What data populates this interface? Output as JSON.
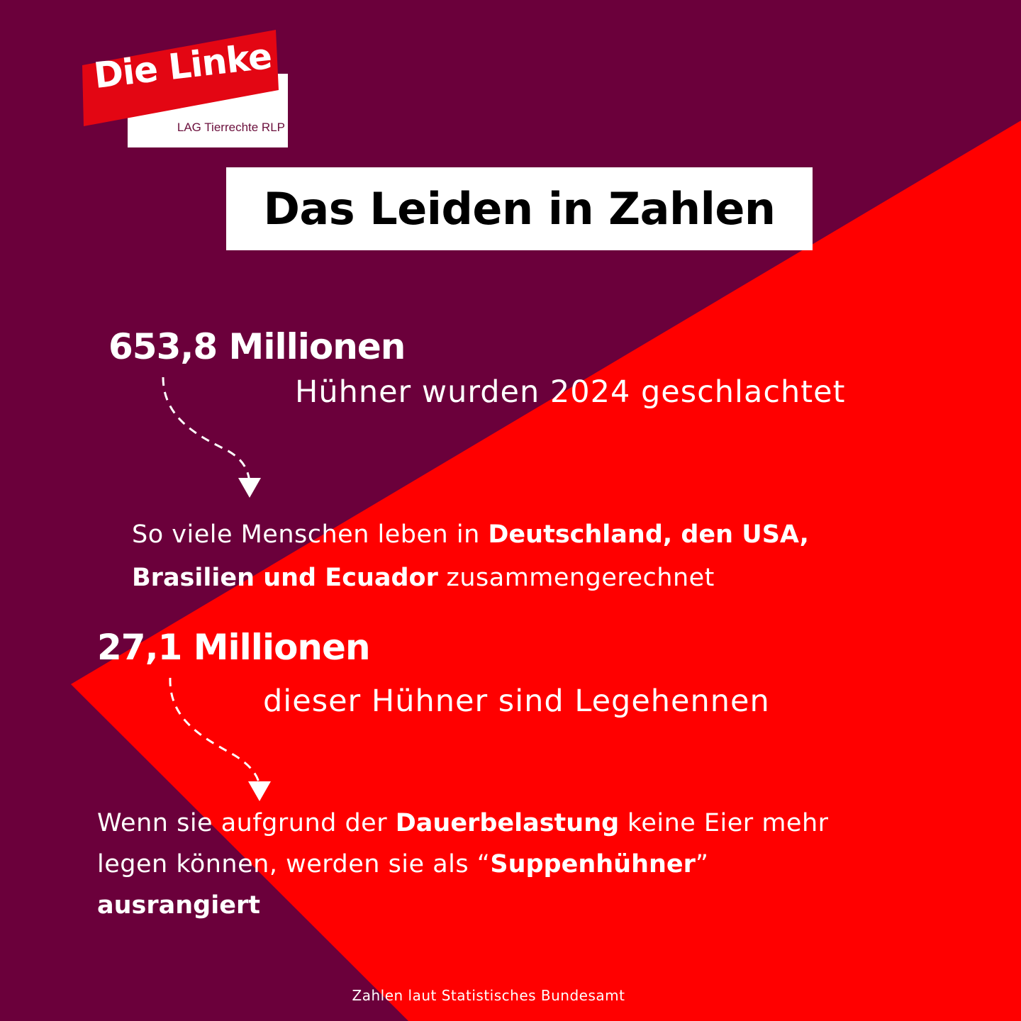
{
  "colors": {
    "plum": "#6b003b",
    "red": "#ff0000",
    "logo_red": "#e30613",
    "white": "#ffffff",
    "black": "#000000"
  },
  "logo": {
    "brand": "Die Linke",
    "subtitle": "LAG Tierrechte RLP"
  },
  "title": "Das Leiden in Zahlen",
  "block1": {
    "number": "653,8 Millionen",
    "caption": "Hühner wurden 2024 geschlachtet",
    "text_prefix": "So viele Menschen leben in ",
    "text_bold_1": "Deutschland, den USA, Brasilien und Ecuador",
    "text_suffix": " zusammengerechnet"
  },
  "block2": {
    "number": "27,1 Millionen",
    "caption": "dieser Hühner sind Legehennen",
    "text_prefix": "Wenn sie aufgrund der ",
    "text_bold_1": "Dauerbelastung",
    "text_mid": " keine Eier mehr legen können, werden sie als “",
    "text_bold_2": "Suppenhühner",
    "text_mid_2": "” ",
    "text_bold_3": "ausrangiert"
  },
  "footer": "Zahlen laut Statistisches Bundesamt",
  "icons": [
    "dashed-arrow-icon",
    "dashed-arrow-icon"
  ]
}
